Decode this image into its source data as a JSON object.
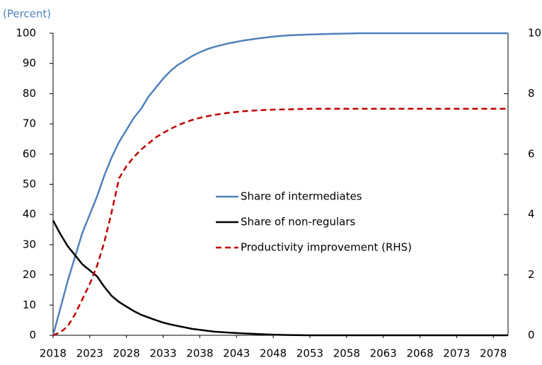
{
  "chart_data": {
    "type": "line",
    "ylabel": "(Percent)",
    "x": [
      2018,
      2019,
      2020,
      2021,
      2022,
      2023,
      2024,
      2025,
      2026,
      2027,
      2028,
      2029,
      2030,
      2031,
      2032,
      2033,
      2034,
      2035,
      2036,
      2037,
      2038,
      2039,
      2040,
      2042,
      2044,
      2046,
      2048,
      2050,
      2053,
      2056,
      2060,
      2065,
      2070,
      2075,
      2080
    ],
    "series": [
      {
        "name": "Share of intermediates",
        "color": "#4f81bd",
        "line_style": "solid",
        "values": [
          0,
          9,
          18,
          26,
          34,
          40,
          46,
          53,
          59,
          64,
          68,
          72,
          75,
          79,
          82,
          85,
          87.5,
          89.5,
          91,
          92.5,
          93.7,
          94.7,
          95.5,
          96.7,
          97.6,
          98.3,
          98.9,
          99.3,
          99.6,
          99.8,
          100,
          100,
          100,
          100,
          100
        ]
      },
      {
        "name": "Share of non-regulars",
        "color": "#000000",
        "line_style": "solid",
        "values": [
          38,
          33.5,
          29.5,
          26.5,
          23.5,
          21.5,
          19.5,
          16,
          13,
          11,
          9.5,
          8,
          6.8,
          5.9,
          5,
          4.2,
          3.6,
          3.1,
          2.6,
          2.1,
          1.8,
          1.5,
          1.2,
          0.9,
          0.6,
          0.4,
          0.2,
          0.1,
          0,
          0,
          0,
          0,
          0,
          0,
          0
        ]
      },
      {
        "name": "Productivity improvement (RHS)",
        "color": "#c00000",
        "line_style": "dashed",
        "axis": "y2",
        "values": [
          0,
          0.1,
          0.3,
          0.7,
          1.2,
          1.7,
          2.3,
          3.1,
          4.1,
          5.2,
          5.6,
          5.9,
          6.15,
          6.35,
          6.55,
          6.7,
          6.83,
          6.95,
          7.05,
          7.13,
          7.2,
          7.25,
          7.3,
          7.37,
          7.42,
          7.45,
          7.47,
          7.48,
          7.5,
          7.5,
          7.5,
          7.5,
          7.5,
          7.5,
          7.5
        ]
      }
    ],
    "xlim": [
      2018,
      2080
    ],
    "xticks": [
      2018,
      2023,
      2028,
      2033,
      2038,
      2043,
      2048,
      2053,
      2058,
      2063,
      2068,
      2073,
      2078
    ],
    "ylim": [
      0,
      100
    ],
    "yticks": [
      0,
      10,
      20,
      30,
      40,
      50,
      60,
      70,
      80,
      90,
      100
    ],
    "y2lim": [
      0,
      10
    ],
    "y2ticks": [
      0,
      2,
      4,
      6,
      8,
      10
    ],
    "legend_position": "center"
  }
}
